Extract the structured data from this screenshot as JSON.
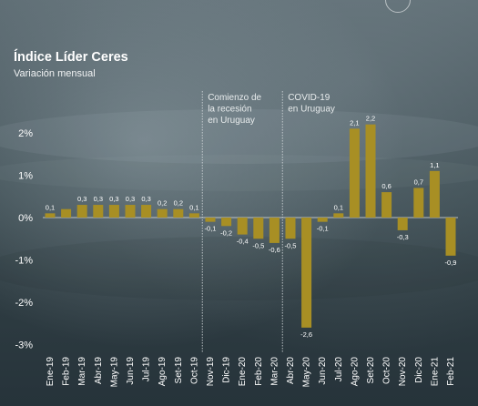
{
  "header": {
    "title": "Índice Líder Ceres",
    "subtitle": "Variación mensual"
  },
  "colors": {
    "bar": "#a88f24",
    "zero_line": "#e3e6e7",
    "marker_line": "#d7dcde"
  },
  "chart_data": {
    "type": "bar",
    "title": "Índice Líder Ceres",
    "subtitle": "Variación mensual",
    "xlabel": "",
    "ylabel": "",
    "ylim": [
      -3,
      2.5
    ],
    "yticks": [
      2,
      1,
      0,
      -1,
      -2,
      -3
    ],
    "ytick_labels": [
      "2%",
      "1%",
      "0%",
      "-1%",
      "-2%",
      "-3%"
    ],
    "grid": false,
    "categories": [
      "Ene-19",
      "Feb-19",
      "Mar-19",
      "Abr-19",
      "May-19",
      "Jun-19",
      "Jul-19",
      "Ago-19",
      "Set-19",
      "Oct-19",
      "Nov-19",
      "Dic-19",
      "Ene-20",
      "Feb-20",
      "Mar-20",
      "Abr-20",
      "May-20",
      "Jun-20",
      "Jul-20",
      "Ago-20",
      "Set-20",
      "Oct-20",
      "Nov-20",
      "Dic-20",
      "Ene-21",
      "Feb-21"
    ],
    "values": [
      0.1,
      0.2,
      0.3,
      0.3,
      0.3,
      0.3,
      0.3,
      0.2,
      0.2,
      0.1,
      -0.1,
      -0.2,
      -0.4,
      -0.5,
      -0.6,
      -0.5,
      -2.6,
      -0.1,
      0.1,
      2.1,
      2.2,
      0.6,
      -0.3,
      0.7,
      1.1,
      -0.9
    ],
    "value_labels": [
      "0,1",
      "0,2",
      "0,3",
      "0,3",
      "0,3",
      "0,3",
      "0,3",
      "0,2",
      "0,2",
      "0,1",
      "-0,1",
      "-0,2",
      "-0,4",
      "-0,5",
      "-0,6",
      "-0,5",
      "-2,6",
      "-0,1",
      "0,1",
      "2,1",
      "2,2",
      "0,6",
      "-0,3",
      "0,7",
      "1,1",
      "-0,9"
    ],
    "label_visible": [
      true,
      false,
      true,
      true,
      true,
      true,
      true,
      true,
      true,
      true,
      true,
      true,
      true,
      true,
      true,
      true,
      true,
      true,
      true,
      true,
      true,
      true,
      true,
      true,
      true,
      true
    ],
    "annotations": [
      {
        "category": "Oct-19",
        "lines": [
          "Comienzo de",
          "la recesión",
          "en Uruguay"
        ]
      },
      {
        "category": "Mar-20",
        "lines": [
          "COVID-19",
          "en Uruguay"
        ]
      }
    ]
  }
}
